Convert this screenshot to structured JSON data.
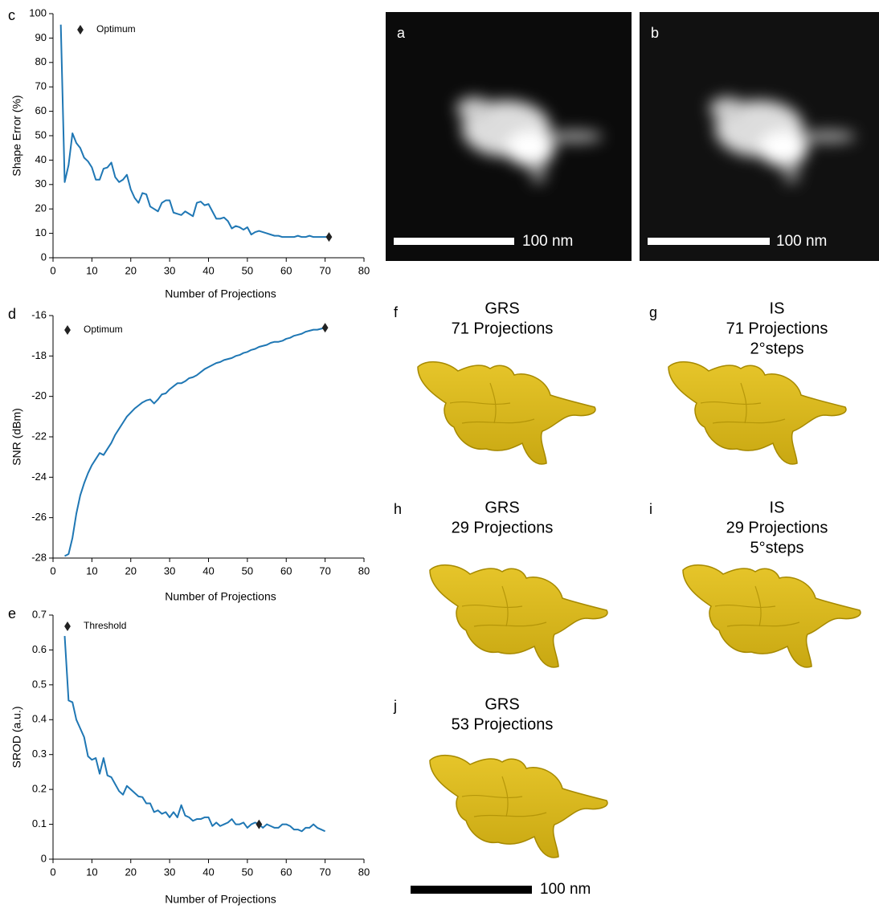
{
  "chart_data": [
    {
      "type": "line",
      "panel": "c",
      "y_label": "Shape Error (%)",
      "x_label": "Number of Projections",
      "color": "#1f77b4",
      "xlim": [
        0,
        80
      ],
      "xticks": [
        0,
        10,
        20,
        30,
        40,
        50,
        60,
        70,
        80
      ],
      "ylim": [
        0,
        100
      ],
      "yticks": [
        0,
        10,
        20,
        30,
        40,
        50,
        60,
        70,
        80,
        90,
        100
      ],
      "x": [
        2,
        3,
        4,
        5,
        6,
        7,
        8,
        9,
        10,
        11,
        12,
        13,
        14,
        15,
        16,
        17,
        18,
        19,
        20,
        21,
        22,
        23,
        24,
        25,
        26,
        27,
        28,
        29,
        30,
        31,
        32,
        33,
        34,
        35,
        36,
        37,
        38,
        39,
        40,
        41,
        42,
        43,
        44,
        45,
        46,
        47,
        48,
        49,
        50,
        51,
        52,
        53,
        54,
        55,
        56,
        57,
        58,
        59,
        60,
        61,
        62,
        63,
        64,
        65,
        66,
        67,
        68,
        69,
        70,
        71
      ],
      "values": [
        95.5,
        31,
        38,
        51,
        47,
        45,
        41,
        39.5,
        37,
        32,
        32,
        36.5,
        37,
        39,
        33,
        31,
        32,
        34,
        28,
        24.5,
        22.5,
        26.5,
        26,
        21,
        20,
        19,
        22.5,
        23.5,
        23.5,
        18.5,
        18,
        17.5,
        19,
        18,
        17,
        22.5,
        23,
        21.5,
        22,
        19,
        16,
        16,
        16.5,
        15,
        12,
        13,
        12.5,
        11.5,
        12.5,
        9.5,
        10.5,
        11,
        10.5,
        10,
        9.5,
        9,
        9,
        8.5,
        8.5,
        8.5,
        8.5,
        9,
        8.5,
        8.5,
        9,
        8.5,
        8.5,
        8.5,
        8.5,
        8.5
      ],
      "marker": {
        "label": "Optimum",
        "x": 71,
        "y": 8.5
      }
    },
    {
      "type": "line",
      "panel": "d",
      "y_label": "SNR (dBm)",
      "x_label": "Number of Projections",
      "color": "#1f77b4",
      "xlim": [
        0,
        80
      ],
      "xticks": [
        0,
        10,
        20,
        30,
        40,
        50,
        60,
        70,
        80
      ],
      "ylim": [
        -28,
        -16
      ],
      "yticks": [
        -28,
        -26,
        -24,
        -22,
        -20,
        -18,
        -16
      ],
      "x": [
        3,
        4,
        5,
        6,
        7,
        8,
        9,
        10,
        11,
        12,
        13,
        14,
        15,
        16,
        17,
        18,
        19,
        20,
        21,
        22,
        23,
        24,
        25,
        26,
        27,
        28,
        29,
        30,
        31,
        32,
        33,
        34,
        35,
        36,
        37,
        38,
        39,
        40,
        41,
        42,
        43,
        44,
        45,
        46,
        47,
        48,
        49,
        50,
        51,
        52,
        53,
        54,
        55,
        56,
        57,
        58,
        59,
        60,
        61,
        62,
        63,
        64,
        65,
        66,
        67,
        68,
        69,
        70
      ],
      "values": [
        -27.9,
        -27.8,
        -27,
        -25.8,
        -24.9,
        -24.3,
        -23.8,
        -23.4,
        -23.1,
        -22.8,
        -22.9,
        -22.6,
        -22.3,
        -21.9,
        -21.6,
        -21.3,
        -21,
        -20.8,
        -20.6,
        -20.45,
        -20.3,
        -20.2,
        -20.15,
        -20.35,
        -20.15,
        -19.9,
        -19.85,
        -19.65,
        -19.5,
        -19.35,
        -19.35,
        -19.25,
        -19.1,
        -19.05,
        -18.95,
        -18.8,
        -18.65,
        -18.55,
        -18.45,
        -18.35,
        -18.3,
        -18.2,
        -18.15,
        -18.1,
        -18,
        -17.95,
        -17.85,
        -17.8,
        -17.7,
        -17.65,
        -17.55,
        -17.5,
        -17.45,
        -17.35,
        -17.3,
        -17.3,
        -17.25,
        -17.15,
        -17.1,
        -17,
        -16.95,
        -16.9,
        -16.8,
        -16.75,
        -16.7,
        -16.7,
        -16.65,
        -16.6
      ],
      "marker": {
        "label": "Optimum",
        "x": 70,
        "y": -16.6
      }
    },
    {
      "type": "line",
      "panel": "e",
      "y_label": "SROD (a.u.)",
      "x_label": "Number of Projections",
      "color": "#1f77b4",
      "xlim": [
        0,
        80
      ],
      "xticks": [
        0,
        10,
        20,
        30,
        40,
        50,
        60,
        70,
        80
      ],
      "ylim": [
        0,
        0.7
      ],
      "yticks": [
        0,
        0.1,
        0.2,
        0.3,
        0.4,
        0.5,
        0.6,
        0.7
      ],
      "x": [
        3,
        4,
        5,
        6,
        7,
        8,
        9,
        10,
        11,
        12,
        13,
        14,
        15,
        16,
        17,
        18,
        19,
        20,
        21,
        22,
        23,
        24,
        25,
        26,
        27,
        28,
        29,
        30,
        31,
        32,
        33,
        34,
        35,
        36,
        37,
        38,
        39,
        40,
        41,
        42,
        43,
        44,
        45,
        46,
        47,
        48,
        49,
        50,
        51,
        52,
        53,
        54,
        55,
        56,
        57,
        58,
        59,
        60,
        61,
        62,
        63,
        64,
        65,
        66,
        67,
        68,
        69,
        70
      ],
      "values": [
        0.64,
        0.455,
        0.45,
        0.4,
        0.375,
        0.35,
        0.295,
        0.285,
        0.29,
        0.245,
        0.29,
        0.24,
        0.235,
        0.215,
        0.195,
        0.185,
        0.21,
        0.2,
        0.19,
        0.18,
        0.178,
        0.16,
        0.16,
        0.135,
        0.14,
        0.13,
        0.135,
        0.12,
        0.135,
        0.12,
        0.155,
        0.125,
        0.12,
        0.11,
        0.115,
        0.115,
        0.12,
        0.12,
        0.095,
        0.105,
        0.095,
        0.1,
        0.105,
        0.115,
        0.1,
        0.1,
        0.105,
        0.09,
        0.1,
        0.105,
        0.1,
        0.09,
        0.1,
        0.095,
        0.09,
        0.09,
        0.1,
        0.1,
        0.095,
        0.085,
        0.085,
        0.08,
        0.09,
        0.09,
        0.1,
        0.09,
        0.085,
        0.08
      ],
      "marker": {
        "label": "Threshold",
        "x": 53,
        "y": 0.1
      }
    }
  ],
  "images": [
    {
      "label": "a",
      "scale_bar": "100 nm"
    },
    {
      "label": "b",
      "scale_bar": "100 nm"
    }
  ],
  "renders": [
    {
      "label": "f",
      "title": [
        "GRS",
        "71 Projections"
      ]
    },
    {
      "label": "g",
      "title": [
        "IS",
        "71 Projections",
        "2°steps"
      ]
    },
    {
      "label": "h",
      "title": [
        "GRS",
        "29 Projections"
      ]
    },
    {
      "label": "i",
      "title": [
        "IS",
        "29 Projections",
        "5°steps"
      ]
    },
    {
      "label": "j",
      "title": [
        "GRS",
        "53 Projections"
      ]
    }
  ],
  "scale_bar": "100 nm"
}
